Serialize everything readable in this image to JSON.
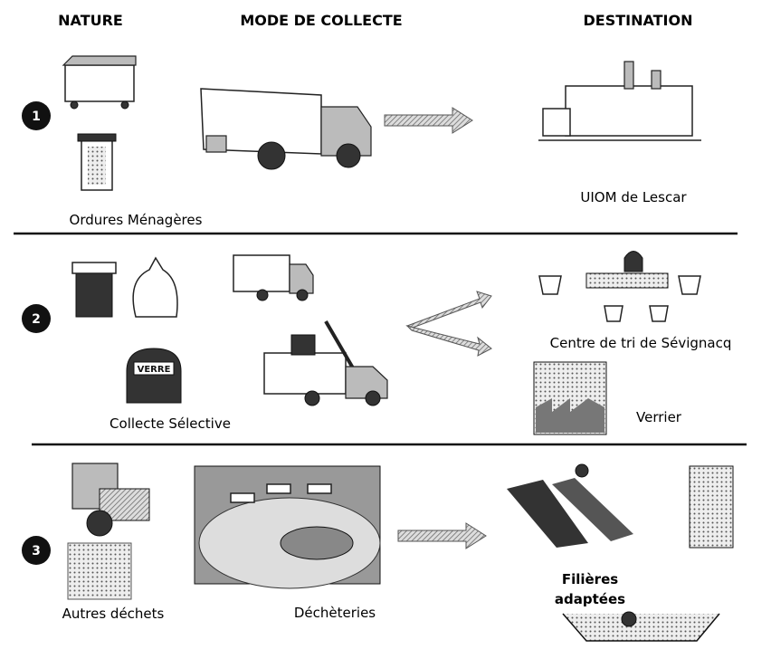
{
  "headers": {
    "nature": "NATURE",
    "mode": "MODE DE COLLECTE",
    "destination": "DESTINATION"
  },
  "rows": [
    {
      "number": "1",
      "nature": "Ordures Ménagères",
      "destination": "UIOM de Lescar"
    },
    {
      "number": "2",
      "nature": "Collecte Sélective",
      "bin_label": "VERRE",
      "destinations": [
        "Centre de tri de Sévignacq",
        "Verrier"
      ]
    },
    {
      "number": "3",
      "nature": "Autres déchets",
      "collection": "Déchèteries",
      "destination": [
        "Filières",
        "adaptées"
      ]
    }
  ]
}
